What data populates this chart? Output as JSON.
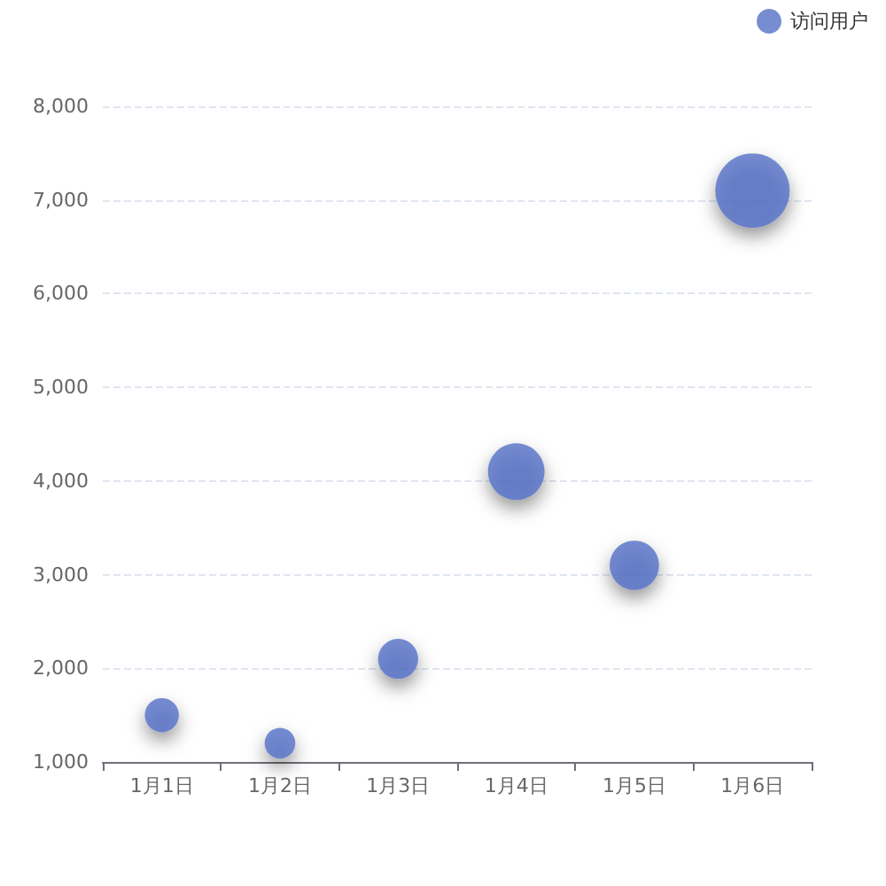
{
  "chart_data": {
    "type": "bubble",
    "categories": [
      "1月1日",
      "1月2日",
      "1月3日",
      "1月4日",
      "1月5日",
      "1月6日"
    ],
    "series": [
      {
        "name": "访问用户",
        "color": "#5470c6",
        "values": [
          1500,
          1200,
          2100,
          4100,
          3100,
          7100
        ],
        "sizes": [
          0.21,
          0.17,
          0.29,
          0.58,
          0.44,
          1
        ]
      }
    ],
    "ylim": [
      1000,
      8000
    ],
    "yticks": [
      {
        "value": 1000,
        "label": "1,000"
      },
      {
        "value": 2000,
        "label": "2,000"
      },
      {
        "value": 3000,
        "label": "3,000"
      },
      {
        "value": 4000,
        "label": "4,000"
      },
      {
        "value": 5000,
        "label": "5,000"
      },
      {
        "value": 6000,
        "label": "6,000"
      },
      {
        "value": 7000,
        "label": "7,000"
      },
      {
        "value": 8000,
        "label": "8,000"
      }
    ],
    "grid": "y",
    "legend": "top right"
  }
}
